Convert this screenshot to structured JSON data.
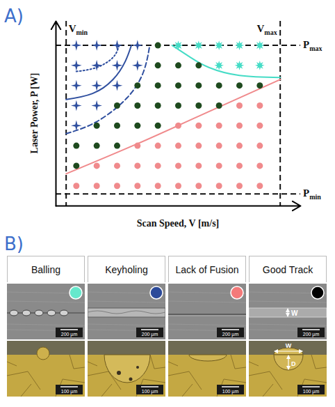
{
  "chart_data": {
    "type": "scatter",
    "xlabel": "Scan Speed, V [m/s]",
    "ylabel": "Laser Power, P [W]",
    "xlim": [
      0,
      12
    ],
    "ylim": [
      0,
      9.2
    ],
    "xticks": [],
    "yticks": [],
    "tick_labels": false,
    "grid": false,
    "series": [
      {
        "marker": "star4",
        "color": "#2f4f9f",
        "x": [
          1,
          2,
          3,
          4,
          1,
          2,
          3,
          4,
          1,
          2,
          3,
          1,
          2,
          1
        ],
        "y": [
          8,
          8,
          8,
          8,
          7,
          7,
          7,
          7,
          6,
          6,
          6,
          5,
          5,
          4
        ]
      },
      {
        "marker": "circle",
        "color": "#1e4a1e",
        "x": [
          5,
          5,
          6,
          7,
          4,
          5,
          6,
          7,
          8,
          9,
          10,
          3,
          4,
          5,
          6,
          7,
          8,
          2,
          3,
          4,
          5,
          1,
          2,
          3,
          1
        ],
        "y": [
          8,
          7,
          7,
          7,
          6,
          6,
          6,
          6,
          6,
          6,
          6,
          5,
          5,
          5,
          5,
          5,
          5,
          4,
          4,
          4,
          4,
          3,
          3,
          3,
          2
        ]
      },
      {
        "marker": "star8",
        "color": "#45dcc6",
        "x": [
          6,
          7,
          8,
          9,
          10,
          8,
          9,
          10
        ],
        "y": [
          8,
          8,
          8,
          8,
          8,
          7,
          7,
          7
        ]
      },
      {
        "marker": "circle",
        "color": "#f08a8c",
        "x": [
          9,
          10,
          6,
          7,
          8,
          9,
          10,
          4,
          5,
          6,
          7,
          8,
          9,
          10,
          2,
          3,
          4,
          5,
          6,
          7,
          8,
          9,
          10,
          1,
          2,
          3,
          4,
          5,
          6,
          7,
          8,
          9,
          10
        ],
        "y": [
          5,
          5,
          4,
          4,
          4,
          4,
          4,
          3,
          3,
          3,
          3,
          3,
          3,
          3,
          2,
          2,
          2,
          2,
          2,
          2,
          2,
          2,
          2,
          1,
          1,
          1,
          1,
          1,
          1,
          1,
          1,
          1,
          1
        ]
      }
    ],
    "boundaries": [
      {
        "color": "#2f4f9f",
        "line_style": "solid",
        "x": [
          0.5,
          1.8,
          2.8,
          3.4,
          3.7
        ],
        "y": [
          5.3,
          5.6,
          6.3,
          7.2,
          8
        ]
      },
      {
        "color": "#2f4f9f",
        "line_style": "dotted",
        "x": [
          1,
          2,
          2.8,
          3.1
        ],
        "y": [
          6.7,
          6.9,
          7.4,
          8
        ]
      },
      {
        "color": "#2f4f9f",
        "line_style": "dashed",
        "x": [
          0.5,
          2,
          3.5,
          4.3,
          4.6
        ],
        "y": [
          3.6,
          4.2,
          5.4,
          6.7,
          8
        ]
      },
      {
        "color": "#45dcc6",
        "line_style": "solid",
        "x": [
          5.7,
          6.6,
          7.5,
          9,
          11
        ],
        "y": [
          8,
          7.4,
          6.9,
          6.5,
          6.4
        ]
      },
      {
        "color": "#f08a8c",
        "line_style": "solid",
        "x": [
          0.5,
          4,
          7.5,
          11
        ],
        "y": [
          1.6,
          3.1,
          4.7,
          6.3
        ]
      }
    ],
    "annotations": {
      "x": [
        {
          "value": 0.5,
          "label": "V",
          "subscript": "min"
        },
        {
          "value": 11,
          "label": "V",
          "subscript": "max"
        }
      ],
      "y": [
        {
          "value": 8,
          "label": "P",
          "subscript": "max"
        },
        {
          "value": 0.6,
          "label": "P",
          "subscript": "min"
        }
      ]
    }
  },
  "panel_labels": [
    "A)",
    "B)"
  ],
  "micrographs": {
    "panels": [
      {
        "title": "Balling",
        "color": "#66e8cc",
        "scale_bars": [
          "200 µm",
          "100 µm"
        ]
      },
      {
        "title": "Keyholing",
        "color": "#2c4a9a",
        "scale_bars": [
          "200 µm",
          "100 µm"
        ]
      },
      {
        "title": "Lack of Fusion",
        "color": "#f47a7a",
        "scale_bars": [
          "200 µm",
          "100 µm"
        ]
      },
      {
        "title": "Good Track",
        "color": "#000000",
        "scale_bars": [
          "200 µm",
          "100 µm"
        ],
        "dimension_labels": {
          "top": [
            "W"
          ],
          "bottom": [
            "W",
            "D"
          ]
        }
      }
    ]
  }
}
